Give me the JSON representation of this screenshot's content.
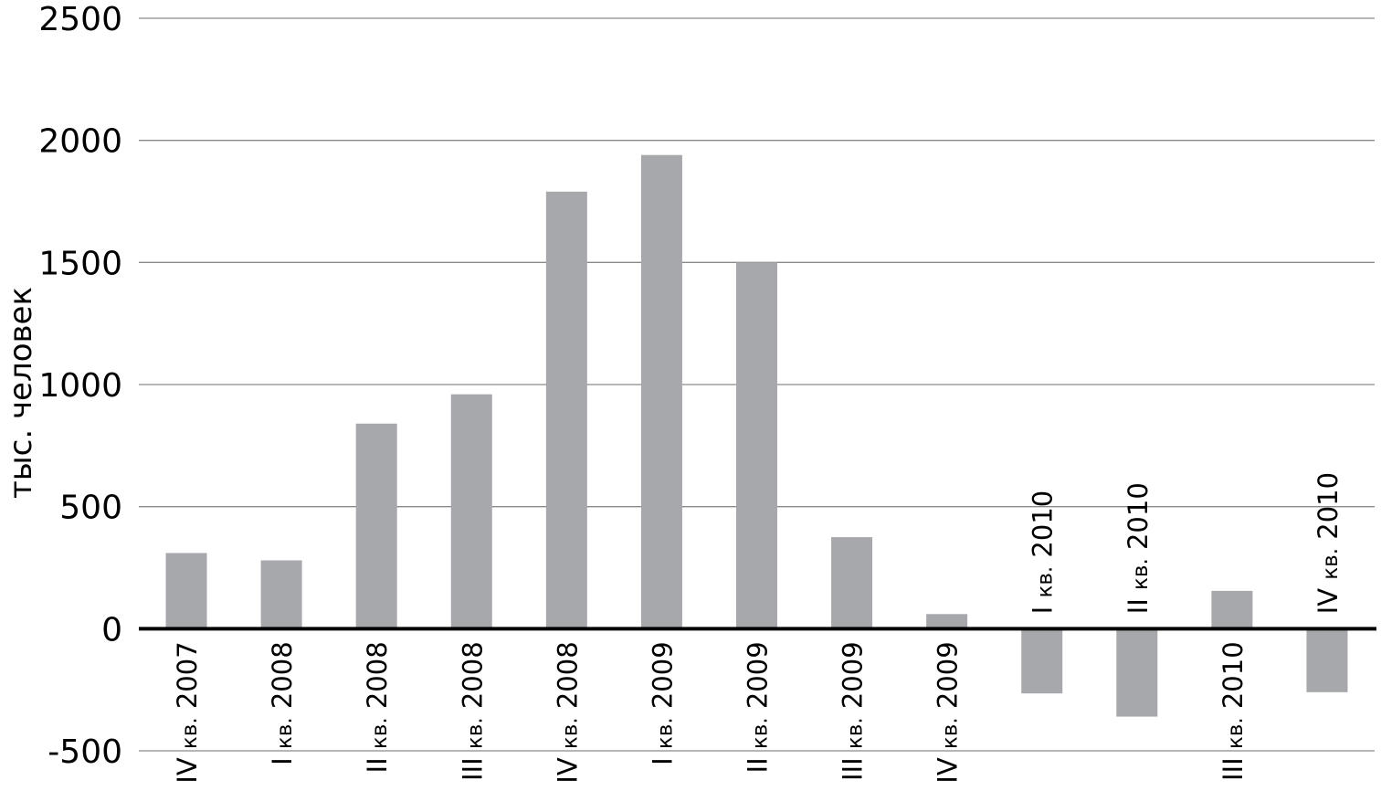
{
  "chart_data": {
    "type": "bar",
    "title": "",
    "xlabel": "",
    "ylabel": "тыс. человек",
    "ylim": [
      -500,
      2500
    ],
    "yticks": [
      -500,
      0,
      500,
      1000,
      1500,
      2000,
      2500
    ],
    "grid": true,
    "bar_color": "#a7a8ab",
    "categories": [
      {
        "roman": "IV",
        "mid": "кв.",
        "year": "2007"
      },
      {
        "roman": "I",
        "mid": "кв.",
        "year": "2008"
      },
      {
        "roman": "II",
        "mid": "кв.",
        "year": "2008"
      },
      {
        "roman": "III",
        "mid": "кв.",
        "year": "2008"
      },
      {
        "roman": "IV",
        "mid": "кв.",
        "year": "2008"
      },
      {
        "roman": "I",
        "mid": "кв.",
        "year": "2009"
      },
      {
        "roman": "II",
        "mid": "кв.",
        "year": "2009"
      },
      {
        "roman": "III",
        "mid": "кв.",
        "year": "2009"
      },
      {
        "roman": "IV",
        "mid": "кв.",
        "year": "2009"
      },
      {
        "roman": "I",
        "mid": "кв.",
        "year": "2010"
      },
      {
        "roman": "II",
        "mid": "кв.",
        "year": "2010"
      },
      {
        "roman": "III",
        "mid": "кв.",
        "year": "2010"
      },
      {
        "roman": "IV",
        "mid": "кв.",
        "year": "2010"
      }
    ],
    "values": [
      310,
      280,
      840,
      960,
      1790,
      1940,
      1500,
      375,
      60,
      -265,
      -360,
      155,
      -260
    ]
  }
}
